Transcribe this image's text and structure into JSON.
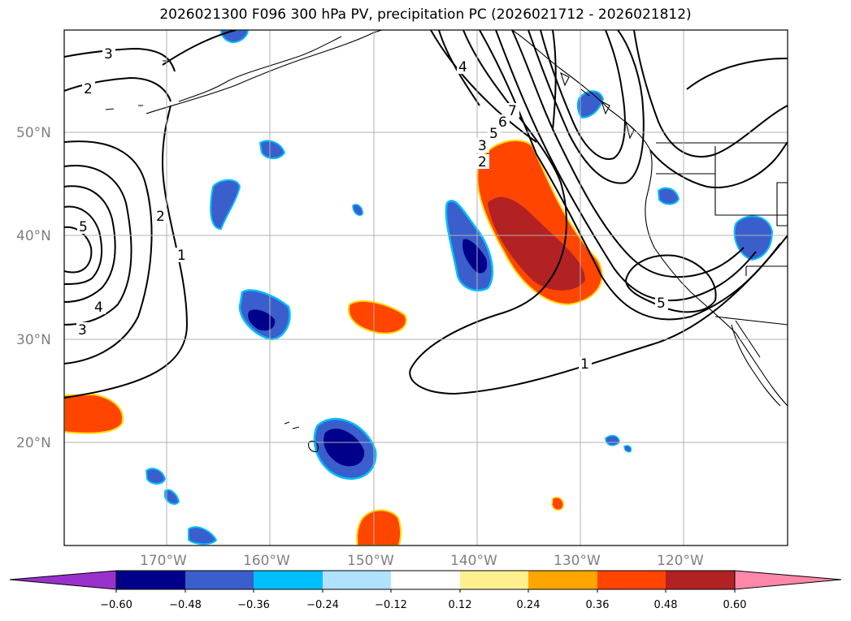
{
  "title": "2026021300 F096 300 hPa PV, precipitation PC (2026021712 - 2026021812)",
  "lat_labels": [
    "50°N",
    "40°N",
    "30°N",
    "20°N"
  ],
  "lon_labels": [
    "170°W",
    "160°W",
    "150°W",
    "140°W",
    "130°W",
    "120°W"
  ],
  "colorbar": {
    "colors": [
      "#9932cc",
      "#00008b",
      "#3a5fcd",
      "#00bfff",
      "#b0e2ff",
      "#ffffff",
      "#fff08f",
      "#ffa500",
      "#ff4500",
      "#b22222",
      "#ff88aa"
    ],
    "ticks": [
      "−0.60",
      "−0.48",
      "−0.36",
      "−0.24",
      "−0.12",
      "0.12",
      "0.24",
      "0.36",
      "0.48",
      "0.60"
    ]
  },
  "contour_labels": [
    "3",
    "2",
    "5",
    "4",
    "3",
    "2",
    "1",
    "4",
    "7",
    "6",
    "5",
    "3",
    "2",
    "5",
    "1"
  ],
  "colors": {
    "land_outline": "#000000",
    "grid": "#b0b0b0"
  }
}
